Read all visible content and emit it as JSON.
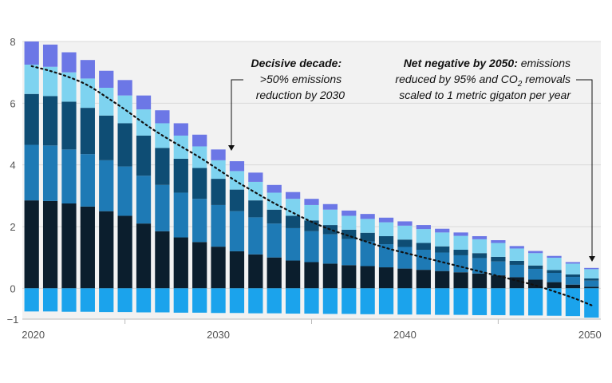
{
  "chart_data": {
    "type": "bar",
    "stacked": true,
    "title": "",
    "xlabel": "",
    "ylabel": "",
    "ylim": [
      -1,
      8
    ],
    "xlim": [
      2019.5,
      2050.5
    ],
    "yticks": [
      "8",
      "6",
      "4",
      "2",
      "0",
      "−1"
    ],
    "ytick_values": [
      8,
      6,
      4,
      2,
      0,
      -1
    ],
    "xticks": [
      "2020",
      "2030",
      "2040",
      "2050"
    ],
    "xtick_values": [
      2020,
      2030,
      2040,
      2050
    ],
    "grid": "horizontal",
    "background": "#f2f2f2",
    "x": [
      2020,
      2021,
      2022,
      2023,
      2024,
      2025,
      2026,
      2027,
      2028,
      2029,
      2030,
      2031,
      2032,
      2033,
      2034,
      2035,
      2036,
      2037,
      2038,
      2039,
      2040,
      2041,
      2042,
      2043,
      2044,
      2045,
      2046,
      2047,
      2048,
      2049,
      2050
    ],
    "series": [
      {
        "color": "#0b1e2d",
        "values": [
          2.85,
          2.83,
          2.75,
          2.65,
          2.5,
          2.35,
          2.1,
          1.85,
          1.65,
          1.5,
          1.35,
          1.2,
          1.1,
          1.0,
          0.9,
          0.85,
          0.8,
          0.75,
          0.72,
          0.68,
          0.64,
          0.6,
          0.56,
          0.52,
          0.48,
          0.42,
          0.36,
          0.28,
          0.2,
          0.12,
          0.05
        ]
      },
      {
        "color": "#1e7ab5",
        "values": [
          1.8,
          1.8,
          1.75,
          1.7,
          1.65,
          1.6,
          1.55,
          1.5,
          1.45,
          1.4,
          1.35,
          1.3,
          1.2,
          1.1,
          1.05,
          1.0,
          0.95,
          0.85,
          0.8,
          0.75,
          0.7,
          0.65,
          0.6,
          0.55,
          0.5,
          0.45,
          0.4,
          0.35,
          0.3,
          0.25,
          0.2
        ]
      },
      {
        "color": "#0e4d74",
        "values": [
          1.65,
          1.6,
          1.55,
          1.5,
          1.45,
          1.4,
          1.3,
          1.2,
          1.1,
          1.0,
          0.85,
          0.7,
          0.55,
          0.45,
          0.4,
          0.35,
          0.3,
          0.3,
          0.28,
          0.26,
          0.24,
          0.22,
          0.2,
          0.18,
          0.16,
          0.15,
          0.13,
          0.11,
          0.09,
          0.08,
          0.07
        ]
      },
      {
        "color": "#7ed3f0",
        "values": [
          0.95,
          0.95,
          0.95,
          0.95,
          0.9,
          0.9,
          0.85,
          0.8,
          0.75,
          0.7,
          0.6,
          0.6,
          0.6,
          0.55,
          0.55,
          0.5,
          0.5,
          0.45,
          0.45,
          0.45,
          0.45,
          0.45,
          0.45,
          0.45,
          0.45,
          0.45,
          0.4,
          0.4,
          0.4,
          0.35,
          0.3
        ]
      },
      {
        "color": "#6c77e6",
        "values": [
          0.75,
          0.72,
          0.65,
          0.6,
          0.55,
          0.5,
          0.45,
          0.42,
          0.4,
          0.38,
          0.35,
          0.32,
          0.3,
          0.25,
          0.22,
          0.2,
          0.18,
          0.17,
          0.16,
          0.15,
          0.14,
          0.13,
          0.12,
          0.11,
          0.1,
          0.09,
          0.08,
          0.07,
          0.06,
          0.05,
          0.04
        ]
      }
    ],
    "removals": {
      "color": "#1ba3ec",
      "values": [
        -0.75,
        -0.75,
        -0.76,
        -0.76,
        -0.77,
        -0.77,
        -0.78,
        -0.78,
        -0.79,
        -0.79,
        -0.8,
        -0.8,
        -0.81,
        -0.81,
        -0.82,
        -0.82,
        -0.83,
        -0.83,
        -0.84,
        -0.84,
        -0.85,
        -0.85,
        -0.86,
        -0.86,
        -0.87,
        -0.87,
        -0.88,
        -0.88,
        -0.89,
        -0.9,
        -0.95
      ]
    },
    "trend": {
      "style": "dotted",
      "color": "#111111",
      "values": [
        7.2,
        7.05,
        6.85,
        6.6,
        6.2,
        5.8,
        5.35,
        4.95,
        4.6,
        4.25,
        3.85,
        3.45,
        3.1,
        2.75,
        2.45,
        2.15,
        1.9,
        1.7,
        1.5,
        1.3,
        1.15,
        1.0,
        0.85,
        0.7,
        0.55,
        0.4,
        0.25,
        0.1,
        -0.1,
        -0.3,
        -0.55
      ]
    },
    "annotations": [
      {
        "id": "decisive",
        "bold": "Decisive decade:",
        "lines": [
          ">50% emissions",
          "reduction by 2030"
        ]
      },
      {
        "id": "net-negative",
        "line1_bold": "Net negative by 2050:",
        "line1_rest": " emissions",
        "line2_pre": "reduced by 95% and CO",
        "line2_sub": "2",
        "line2_post": " removals",
        "line3": "scaled to 1 metric gigaton per year"
      }
    ]
  }
}
